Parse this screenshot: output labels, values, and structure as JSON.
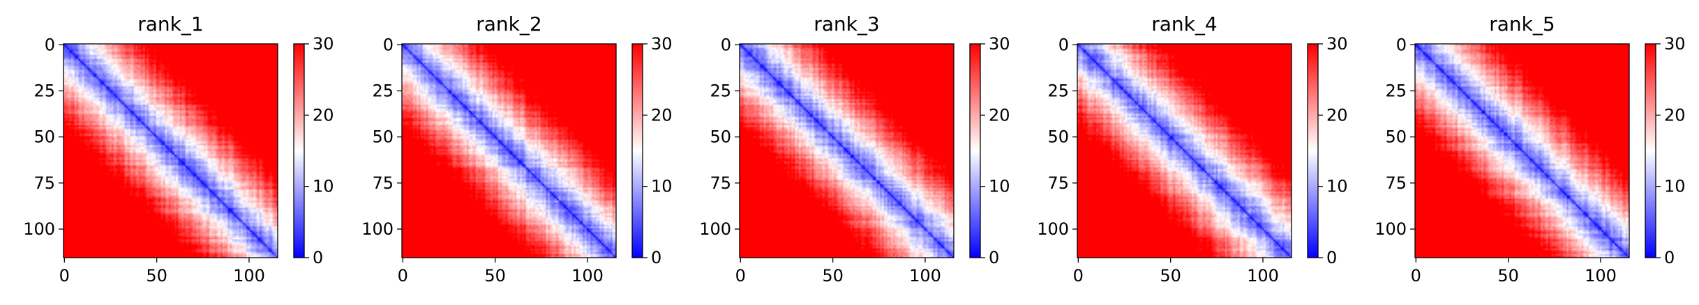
{
  "chart_data": [
    {
      "type": "heatmap",
      "title": "rank_1",
      "n": 116,
      "xticks": [
        0,
        50,
        100
      ],
      "yticks": [
        0,
        25,
        50,
        75,
        100
      ],
      "colorbar": {
        "ticks": [
          0,
          10,
          20,
          30
        ],
        "range": [
          0,
          30
        ]
      },
      "colormap": [
        "#0000ff",
        "#ffffff",
        "#ff0000"
      ],
      "seed": 11
    },
    {
      "type": "heatmap",
      "title": "rank_2",
      "n": 116,
      "xticks": [
        0,
        50,
        100
      ],
      "yticks": [
        0,
        25,
        50,
        75,
        100
      ],
      "colorbar": {
        "ticks": [
          0,
          10,
          20,
          30
        ],
        "range": [
          0,
          30
        ]
      },
      "colormap": [
        "#0000ff",
        "#ffffff",
        "#ff0000"
      ],
      "seed": 23
    },
    {
      "type": "heatmap",
      "title": "rank_3",
      "n": 116,
      "xticks": [
        0,
        50,
        100
      ],
      "yticks": [
        0,
        25,
        50,
        75,
        100
      ],
      "colorbar": {
        "ticks": [
          0,
          10,
          20,
          30
        ],
        "range": [
          0,
          30
        ]
      },
      "colormap": [
        "#0000ff",
        "#ffffff",
        "#ff0000"
      ],
      "seed": 37
    },
    {
      "type": "heatmap",
      "title": "rank_4",
      "n": 116,
      "xticks": [
        0,
        50,
        100
      ],
      "yticks": [
        0,
        25,
        50,
        75,
        100
      ],
      "colorbar": {
        "ticks": [
          0,
          10,
          20,
          30
        ],
        "range": [
          0,
          30
        ]
      },
      "colormap": [
        "#0000ff",
        "#ffffff",
        "#ff0000"
      ],
      "seed": 41
    },
    {
      "type": "heatmap",
      "title": "rank_5",
      "n": 116,
      "xticks": [
        0,
        50,
        100
      ],
      "yticks": [
        0,
        25,
        50,
        75,
        100
      ],
      "colorbar": {
        "ticks": [
          0,
          10,
          20,
          30
        ],
        "range": [
          0,
          30
        ]
      },
      "colormap": [
        "#0000ff",
        "#ffffff",
        "#ff0000"
      ],
      "seed": 53
    }
  ]
}
